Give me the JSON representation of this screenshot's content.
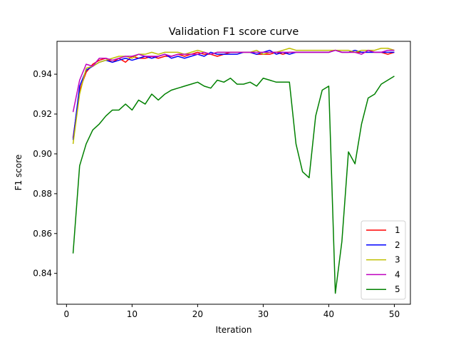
{
  "chart_data": {
    "type": "line",
    "title": "Validation F1 score curve",
    "xlabel": "Iteration",
    "ylabel": "F1 score",
    "xlim": [
      -1.45,
      52.45
    ],
    "ylim": [
      0.8245,
      0.9565
    ],
    "xticks": [
      0,
      10,
      20,
      30,
      40,
      50
    ],
    "yticks": [
      0.84,
      0.86,
      0.88,
      0.9,
      0.92,
      0.94
    ],
    "ytick_labels": [
      "0.84",
      "0.86",
      "0.88",
      "0.90",
      "0.92",
      "0.94"
    ],
    "grid": false,
    "legend_position": "lower-right",
    "x": [
      1,
      2,
      3,
      4,
      5,
      6,
      7,
      8,
      9,
      10,
      11,
      12,
      13,
      14,
      15,
      16,
      17,
      18,
      19,
      20,
      21,
      22,
      23,
      24,
      25,
      26,
      27,
      28,
      29,
      30,
      31,
      32,
      33,
      34,
      35,
      36,
      37,
      38,
      39,
      40,
      41,
      42,
      43,
      44,
      45,
      46,
      47,
      48,
      49,
      50
    ],
    "series": [
      {
        "name": "1",
        "color": "#ff0000",
        "values": [
          0.908,
          0.932,
          0.941,
          0.945,
          0.947,
          0.948,
          0.946,
          0.948,
          0.946,
          0.949,
          0.948,
          0.948,
          0.949,
          0.948,
          0.949,
          0.949,
          0.95,
          0.949,
          0.95,
          0.951,
          0.95,
          0.95,
          0.949,
          0.95,
          0.951,
          0.951,
          0.951,
          0.951,
          0.95,
          0.95,
          0.95,
          0.951,
          0.95,
          0.951,
          0.951,
          0.951,
          0.951,
          0.951,
          0.951,
          0.951,
          0.952,
          0.951,
          0.951,
          0.951,
          0.951,
          0.951,
          0.951,
          0.951,
          0.95,
          0.951
        ]
      },
      {
        "name": "2",
        "color": "#0000ff",
        "values": [
          0.907,
          0.934,
          0.942,
          0.944,
          0.946,
          0.947,
          0.946,
          0.947,
          0.948,
          0.947,
          0.948,
          0.949,
          0.948,
          0.949,
          0.95,
          0.948,
          0.949,
          0.948,
          0.949,
          0.95,
          0.949,
          0.951,
          0.95,
          0.95,
          0.95,
          0.95,
          0.951,
          0.951,
          0.95,
          0.951,
          0.952,
          0.95,
          0.951,
          0.95,
          0.951,
          0.951,
          0.951,
          0.951,
          0.951,
          0.951,
          0.952,
          0.951,
          0.951,
          0.952,
          0.951,
          0.951,
          0.951,
          0.951,
          0.951,
          0.951
        ]
      },
      {
        "name": "3",
        "color": "#bfbf00",
        "values": [
          0.905,
          0.93,
          0.943,
          0.944,
          0.946,
          0.947,
          0.948,
          0.949,
          0.949,
          0.948,
          0.95,
          0.95,
          0.951,
          0.95,
          0.951,
          0.951,
          0.951,
          0.95,
          0.951,
          0.952,
          0.951,
          0.95,
          0.951,
          0.951,
          0.951,
          0.951,
          0.951,
          0.951,
          0.952,
          0.95,
          0.951,
          0.951,
          0.952,
          0.953,
          0.952,
          0.952,
          0.952,
          0.952,
          0.952,
          0.952,
          0.952,
          0.952,
          0.952,
          0.951,
          0.952,
          0.952,
          0.952,
          0.953,
          0.953,
          0.952
        ]
      },
      {
        "name": "4",
        "color": "#bf00bf",
        "values": [
          0.921,
          0.937,
          0.945,
          0.944,
          0.948,
          0.948,
          0.947,
          0.948,
          0.949,
          0.949,
          0.95,
          0.949,
          0.949,
          0.949,
          0.95,
          0.949,
          0.95,
          0.95,
          0.95,
          0.95,
          0.951,
          0.95,
          0.951,
          0.951,
          0.951,
          0.951,
          0.951,
          0.951,
          0.951,
          0.951,
          0.951,
          0.951,
          0.951,
          0.951,
          0.951,
          0.951,
          0.951,
          0.951,
          0.951,
          0.951,
          0.952,
          0.951,
          0.951,
          0.951,
          0.95,
          0.952,
          0.951,
          0.951,
          0.952,
          0.952
        ]
      },
      {
        "name": "5",
        "color": "#008000",
        "values": [
          0.85,
          0.894,
          0.905,
          0.912,
          0.915,
          0.919,
          0.922,
          0.922,
          0.925,
          0.922,
          0.927,
          0.925,
          0.93,
          0.927,
          0.93,
          0.932,
          0.933,
          0.934,
          0.935,
          0.936,
          0.934,
          0.933,
          0.937,
          0.936,
          0.938,
          0.935,
          0.935,
          0.936,
          0.934,
          0.938,
          0.937,
          0.936,
          0.936,
          0.936,
          0.905,
          0.891,
          0.888,
          0.919,
          0.932,
          0.934,
          0.83,
          0.856,
          0.901,
          0.895,
          0.915,
          0.928,
          0.93,
          0.935,
          0.937,
          0.939
        ]
      }
    ]
  }
}
